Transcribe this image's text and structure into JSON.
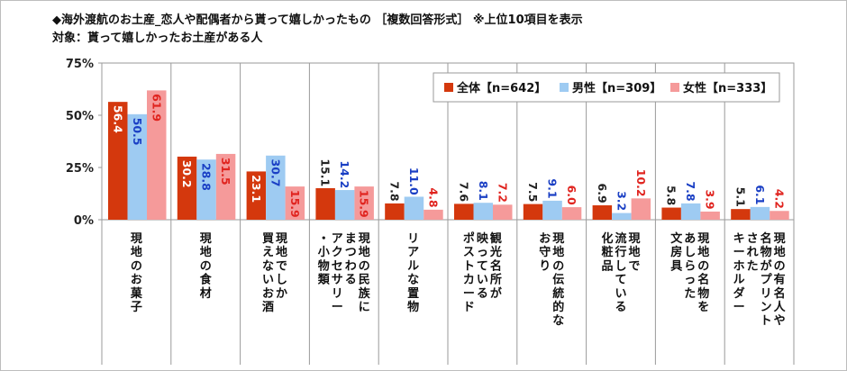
{
  "header": {
    "title": "◆海外渡航のお土産_恋人や配偶者から貰って嬉しかったもの ［複数回答形式］ ※上位10項目を表示",
    "subtitle": "対象：貰って嬉しかったお土産がある人"
  },
  "chart_data": {
    "type": "bar",
    "ylim": [
      0,
      75
    ],
    "yticks": [
      0,
      25,
      50,
      75
    ],
    "ytick_labels": [
      "0%",
      "25%",
      "50%",
      "75%"
    ],
    "xlabel": "",
    "ylabel": "",
    "grid": false,
    "legend_position": "top-right",
    "categories": [
      "現地のお菓子",
      "現地の食材",
      "現地でしか買えないお酒",
      "現地の民族にまつわるアクセサリー・小物類",
      "リアルな置物",
      "観光名所が映っているポストカード",
      "現地の伝統的なお守り",
      "現地で流行している化粧品",
      "現地の名物をあしらった文房具",
      "現地の有名人や名物がプリントされたキーホルダー"
    ],
    "category_lines": [
      [
        "現地のお菓子"
      ],
      [
        "現地の食材"
      ],
      [
        "現地でしか",
        "買えないお酒"
      ],
      [
        "現地の民族に",
        "まつわる",
        "アクセサリー",
        "・小物類"
      ],
      [
        "リアルな置物"
      ],
      [
        "観光名所が",
        "映っている",
        "ポストカード"
      ],
      [
        "現地の伝統的な",
        "お守り"
      ],
      [
        "現地で",
        "流行している",
        "化粧品"
      ],
      [
        "現地の名物を",
        "あしらった",
        "文房具"
      ],
      [
        "現地の有名人や",
        "名物がプリント",
        "された",
        "キーホルダー"
      ]
    ],
    "series": [
      {
        "name": "全体",
        "n_label": "【n=642】",
        "color": "#d4380d",
        "label_color": "#ffffff",
        "values": [
          56.4,
          30.2,
          23.1,
          15.1,
          7.8,
          7.6,
          7.5,
          6.9,
          5.8,
          5.1
        ]
      },
      {
        "name": "男性",
        "n_label": "【n=309】",
        "color": "#9ecbf2",
        "label_color": "#1a3fc4",
        "values": [
          50.5,
          28.8,
          30.7,
          14.2,
          11.0,
          8.1,
          9.1,
          3.2,
          7.8,
          6.1
        ]
      },
      {
        "name": "女性",
        "n_label": "【n=333】",
        "color": "#f59a9a",
        "label_color": "#e0241f",
        "values": [
          61.9,
          31.5,
          15.9,
          15.9,
          4.8,
          7.2,
          6.0,
          10.2,
          3.9,
          4.2
        ]
      }
    ],
    "value_labels": [
      [
        "56.4",
        "30.2",
        "23.1",
        "15.1",
        "7.8",
        "7.6",
        "7.5",
        "6.9",
        "5.8",
        "5.1"
      ],
      [
        "50.5",
        "28.8",
        "30.7",
        "14.2",
        "11.0",
        "8.1",
        "9.1",
        "3.2",
        "7.8",
        "6.1"
      ],
      [
        "61.9",
        "31.5",
        "15.9",
        "15.9",
        "4.8",
        "7.2",
        "6.0",
        "10.2",
        "3.9",
        "4.2"
      ]
    ]
  }
}
